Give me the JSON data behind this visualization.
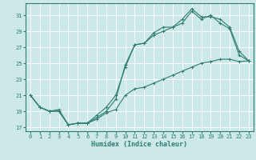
{
  "xlabel": "Humidex (Indice chaleur)",
  "bg_color": "#cce8e8",
  "grid_color": "#ffffff",
  "line_color": "#2e7d70",
  "xlim": [
    -0.5,
    23.5
  ],
  "ylim": [
    16.5,
    32.5
  ],
  "yticks": [
    17,
    19,
    21,
    23,
    25,
    27,
    29,
    31
  ],
  "xticks": [
    0,
    1,
    2,
    3,
    4,
    5,
    6,
    7,
    8,
    9,
    10,
    11,
    12,
    13,
    14,
    15,
    16,
    17,
    18,
    19,
    20,
    21,
    22,
    23
  ],
  "line1_x": [
    0,
    1,
    2,
    3,
    4,
    5,
    6,
    7,
    8,
    9,
    10,
    11,
    12,
    13,
    14,
    15,
    16,
    17,
    18,
    19,
    20,
    21,
    22,
    23
  ],
  "line1_y": [
    21.0,
    19.5,
    19.0,
    19.0,
    17.3,
    17.5,
    17.5,
    18.0,
    18.8,
    19.2,
    21.0,
    21.8,
    22.0,
    22.5,
    23.0,
    23.5,
    24.0,
    24.5,
    25.0,
    25.2,
    25.5,
    25.5,
    25.2,
    25.3
  ],
  "line2_x": [
    0,
    1,
    2,
    3,
    4,
    5,
    6,
    7,
    8,
    9,
    10,
    11,
    12,
    13,
    14,
    15,
    16,
    17,
    18,
    19,
    20,
    21,
    22,
    23
  ],
  "line2_y": [
    21.0,
    19.5,
    19.0,
    19.2,
    17.3,
    17.5,
    17.5,
    18.5,
    19.5,
    21.0,
    24.5,
    27.3,
    27.5,
    28.5,
    29.0,
    29.5,
    30.0,
    31.5,
    30.5,
    31.0,
    30.0,
    29.3,
    26.0,
    25.3
  ],
  "line3_x": [
    0,
    1,
    2,
    3,
    4,
    5,
    6,
    7,
    8,
    9,
    10,
    11,
    12,
    13,
    14,
    15,
    16,
    17,
    18,
    19,
    20,
    21,
    22,
    23
  ],
  "line3_y": [
    21.0,
    19.5,
    19.0,
    19.0,
    17.3,
    17.5,
    17.5,
    18.2,
    19.0,
    20.5,
    24.8,
    27.3,
    27.5,
    28.8,
    29.5,
    29.5,
    30.5,
    31.8,
    30.8,
    30.8,
    30.5,
    29.5,
    26.5,
    25.3
  ]
}
